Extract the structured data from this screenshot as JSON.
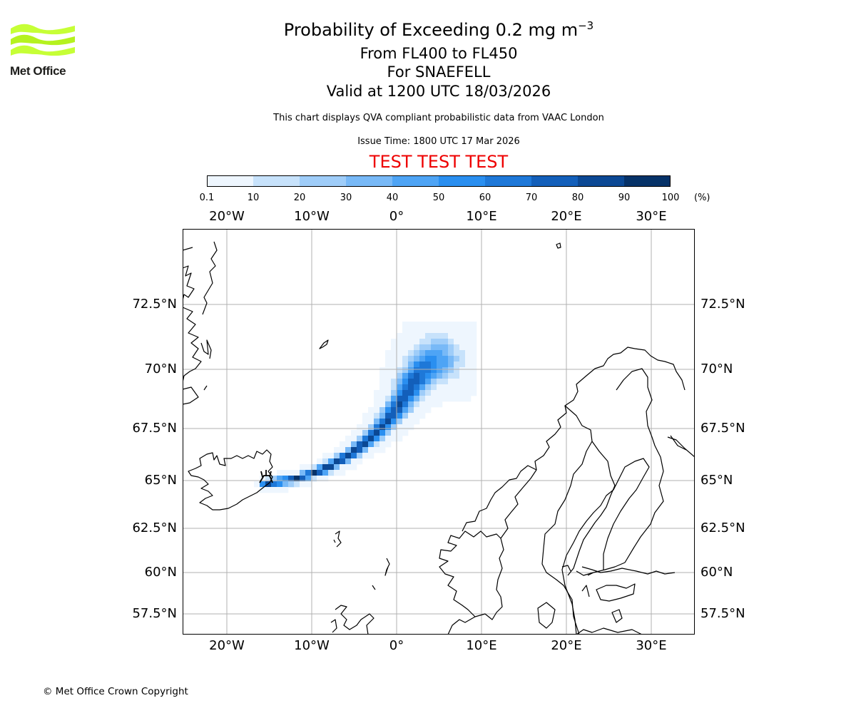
{
  "branding": {
    "logo_text": "Met Office",
    "copyright": "© Met Office Crown Copyright",
    "logo_colors": [
      "#c6ff36",
      "#b5f21f"
    ]
  },
  "titles": {
    "main_prefix": "Probability of Exceeding 0.2 mg m",
    "main_exponent": "−3",
    "levels": "From FL400 to FL450",
    "volcano": "For SNAEFELL",
    "valid": "Valid at 1200 UTC 18/03/2026",
    "disclaimer": "This chart displays QVA compliant probabilistic data from VAAC London",
    "issue": "Issue Time: 1800 UTC 17 Mar 2026",
    "test_banner": "TEST TEST TEST"
  },
  "colorbar": {
    "unit": "(%)",
    "ticks": [
      "0.1",
      "10",
      "20",
      "30",
      "40",
      "50",
      "60",
      "70",
      "80",
      "90",
      "100"
    ],
    "colors": [
      "#eef6fe",
      "#c7e2fb",
      "#9fcdf9",
      "#78b9f7",
      "#4ea4f5",
      "#2a8ff0",
      "#1e78d8",
      "#135fba",
      "#0b4894",
      "#063268"
    ]
  },
  "map": {
    "lon_labels": [
      "20°W",
      "10°W",
      "0°",
      "10°E",
      "20°E",
      "30°E"
    ],
    "lat_labels": [
      "72.5°N",
      "70°N",
      "67.5°N",
      "65°N",
      "62.5°N",
      "60°N",
      "57.5°N"
    ],
    "extent": {
      "lon": [
        -25,
        35
      ],
      "lat": [
        56,
        75
      ]
    },
    "volcano_name": "SNAEFELL",
    "volcano_location": {
      "lon": -15.6,
      "lat": 64.8
    }
  },
  "chart_data": {
    "type": "heatmap",
    "title": "Probability of Exceeding 0.2 mg m−3",
    "value_unit": "%",
    "color_levels": [
      0.1,
      10,
      20,
      30,
      40,
      50,
      60,
      70,
      80,
      90,
      100
    ],
    "plume_centerline": [
      {
        "lon": -15.5,
        "lat": 64.85,
        "core_prob": 95
      },
      {
        "lon": -12.0,
        "lat": 65.05,
        "core_prob": 92
      },
      {
        "lon": -8.5,
        "lat": 65.55,
        "core_prob": 90
      },
      {
        "lon": -5.5,
        "lat": 66.25,
        "core_prob": 88
      },
      {
        "lon": -3.0,
        "lat": 67.05,
        "core_prob": 85
      },
      {
        "lon": -1.0,
        "lat": 67.85,
        "core_prob": 82
      },
      {
        "lon": 0.6,
        "lat": 68.65,
        "core_prob": 80
      },
      {
        "lon": 1.8,
        "lat": 69.35,
        "core_prob": 76
      },
      {
        "lon": 3.2,
        "lat": 70.0,
        "core_prob": 68
      },
      {
        "lon": 4.8,
        "lat": 70.4,
        "core_prob": 50
      }
    ]
  }
}
